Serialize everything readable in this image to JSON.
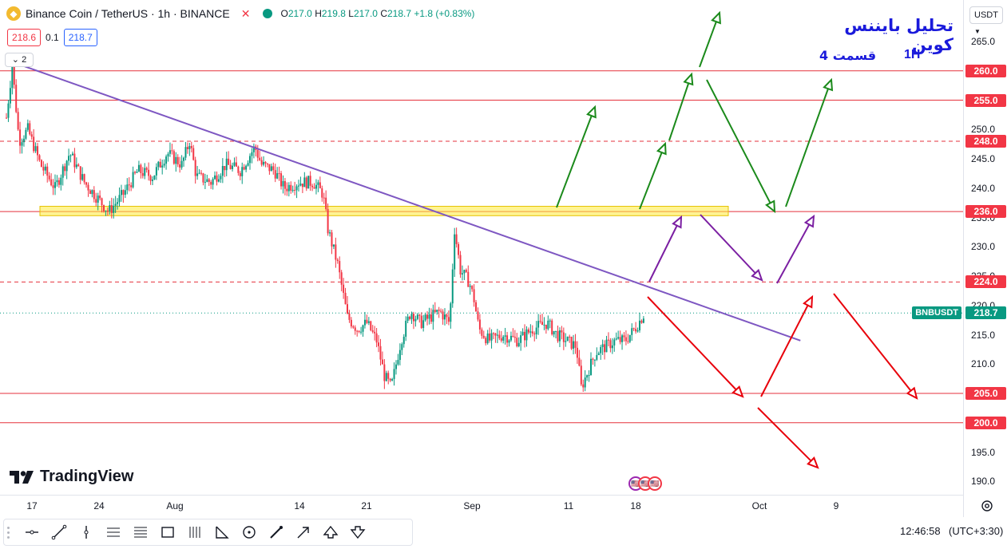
{
  "legend": {
    "symbol": "Binance Coin / TetherUS · 1h · BINANCE",
    "close_mark": "✕",
    "o_label": "O",
    "o_value": "217.0",
    "h_label": "H",
    "h_value": "219.8",
    "l_label": "L",
    "l_value": "217.0",
    "c_label": "C",
    "c_value": "218.7",
    "change": "+1.8 (+0.83%)"
  },
  "quote": {
    "sell": "218.6",
    "spread": "0.1",
    "buy": "218.7"
  },
  "indicators_count": "2",
  "currency_select": "USDT",
  "annotation": {
    "title": "تحلیل بایننس کوین",
    "subtitle": "قسمت 4",
    "timeframe": "1H"
  },
  "symbol_badge": "BNBUSDT",
  "current_price": "218.7",
  "price_ticks": [
    "265.0",
    "260.0",
    "255.0",
    "250.0",
    "245.0",
    "240.0",
    "235.0",
    "230.0",
    "225.0",
    "220.0",
    "215.0",
    "210.0",
    "205.0",
    "200.0",
    "195.0",
    "190.0"
  ],
  "level_badges": [
    {
      "label": "260.0",
      "color": "#f23645"
    },
    {
      "label": "255.0",
      "color": "#f23645"
    },
    {
      "label": "248.0",
      "color": "#f23645"
    },
    {
      "label": "236.0",
      "color": "#f23645"
    },
    {
      "label": "224.0",
      "color": "#f23645"
    },
    {
      "label": "218.7",
      "color": "#089981"
    },
    {
      "label": "205.0",
      "color": "#f23645"
    },
    {
      "label": "200.0",
      "color": "#f23645"
    }
  ],
  "time_ticks": [
    "17",
    "24",
    "Aug",
    "14",
    "21",
    "Sep",
    "11",
    "18",
    "Oct",
    "9"
  ],
  "brand": "TradingView",
  "clock": "12:46:58",
  "timezone": "(UTC+3:30)",
  "toolbar_tools": [
    "horizontal-line-tool",
    "trend-line-tool",
    "vertical-line-tool",
    "parallel-channel-tool",
    "fib-retracement-tool",
    "rectangle-tool",
    "gann-tool",
    "pattern-tool",
    "circle-tool",
    "brush-tool",
    "arrow-tool",
    "arrow-up-tool",
    "arrow-down-tool"
  ],
  "colors": {
    "up": "#089981",
    "down": "#f23645",
    "trend": "#7e57c2",
    "zone": "#ffeb3b",
    "green_arrow": "#1b8a1b",
    "red_arrow": "#e8000b",
    "purple_arrow": "#7b1fa2",
    "annotation": "#1a1adb"
  },
  "chart_data": {
    "type": "candlestick",
    "symbol": "BNBUSDT",
    "ylim": [
      188,
      268
    ],
    "x_ticks": [
      "17",
      "24",
      "Aug",
      "14",
      "21",
      "Sep",
      "11",
      "18",
      "Oct",
      "9"
    ],
    "close_path": [
      {
        "x": 0.0,
        "y": 252
      },
      {
        "x": 0.6,
        "y": 261
      },
      {
        "x": 1.3,
        "y": 248
      },
      {
        "x": 2.2,
        "y": 250
      },
      {
        "x": 3.5,
        "y": 244
      },
      {
        "x": 5.0,
        "y": 240
      },
      {
        "x": 6.5,
        "y": 246
      },
      {
        "x": 8.0,
        "y": 241
      },
      {
        "x": 9.5,
        "y": 238
      },
      {
        "x": 10.5,
        "y": 236
      },
      {
        "x": 12.0,
        "y": 239
      },
      {
        "x": 13.5,
        "y": 243
      },
      {
        "x": 15.0,
        "y": 242
      },
      {
        "x": 16.5,
        "y": 246
      },
      {
        "x": 18.0,
        "y": 244
      },
      {
        "x": 18.8,
        "y": 248
      },
      {
        "x": 19.5,
        "y": 242
      },
      {
        "x": 21.0,
        "y": 241
      },
      {
        "x": 22.5,
        "y": 244
      },
      {
        "x": 24.0,
        "y": 243
      },
      {
        "x": 25.5,
        "y": 247
      },
      {
        "x": 26.2,
        "y": 244
      },
      {
        "x": 27.5,
        "y": 243
      },
      {
        "x": 28.5,
        "y": 240
      },
      {
        "x": 30.0,
        "y": 241
      },
      {
        "x": 31.5,
        "y": 241
      },
      {
        "x": 32.5,
        "y": 239
      },
      {
        "x": 33.0,
        "y": 233
      },
      {
        "x": 34.0,
        "y": 227
      },
      {
        "x": 35.0,
        "y": 218
      },
      {
        "x": 36.0,
        "y": 216
      },
      {
        "x": 37.0,
        "y": 217
      },
      {
        "x": 38.0,
        "y": 214
      },
      {
        "x": 38.8,
        "y": 208
      },
      {
        "x": 39.5,
        "y": 206
      },
      {
        "x": 40.5,
        "y": 214
      },
      {
        "x": 41.5,
        "y": 219
      },
      {
        "x": 42.5,
        "y": 217
      },
      {
        "x": 43.5,
        "y": 218
      },
      {
        "x": 44.5,
        "y": 219
      },
      {
        "x": 45.5,
        "y": 217
      },
      {
        "x": 46.0,
        "y": 233
      },
      {
        "x": 46.6,
        "y": 226
      },
      {
        "x": 47.5,
        "y": 224
      },
      {
        "x": 48.0,
        "y": 221
      },
      {
        "x": 48.5,
        "y": 216
      },
      {
        "x": 49.5,
        "y": 214
      },
      {
        "x": 51.0,
        "y": 215
      },
      {
        "x": 52.5,
        "y": 214
      },
      {
        "x": 54.0,
        "y": 216
      },
      {
        "x": 55.5,
        "y": 217
      },
      {
        "x": 56.5,
        "y": 215
      },
      {
        "x": 57.5,
        "y": 214
      },
      {
        "x": 58.5,
        "y": 213
      },
      {
        "x": 59.0,
        "y": 206
      },
      {
        "x": 59.5,
        "y": 208
      },
      {
        "x": 60.5,
        "y": 212
      },
      {
        "x": 61.5,
        "y": 213
      },
      {
        "x": 62.5,
        "y": 214
      },
      {
        "x": 63.5,
        "y": 214
      },
      {
        "x": 64.5,
        "y": 216
      },
      {
        "x": 65.5,
        "y": 218.7
      }
    ],
    "horizontal_levels": [
      {
        "price": 260,
        "style": "solid"
      },
      {
        "price": 255,
        "style": "solid"
      },
      {
        "price": 248,
        "style": "dashed"
      },
      {
        "price": 236,
        "style": "solid"
      },
      {
        "price": 224,
        "style": "dashed"
      },
      {
        "price": 205,
        "style": "solid"
      },
      {
        "price": 200,
        "style": "solid"
      }
    ],
    "zone": {
      "from": 235.3,
      "to": 236.9
    },
    "trend_line": [
      {
        "x": 0.6,
        "y": 261.5
      },
      {
        "x": 81.5,
        "y": 214
      }
    ]
  }
}
